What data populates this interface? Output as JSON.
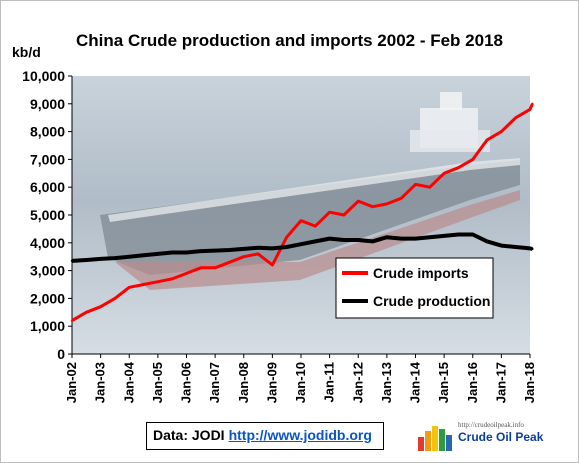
{
  "title": "China Crude production and imports 2002 - Feb 2018",
  "unit_label": "kb/d",
  "source": {
    "label": "Data: JODI",
    "link": "http://www.jodidb.org"
  },
  "logo": {
    "url": "http://crudeoilpeak.info",
    "name": "Crude Oil Peak"
  },
  "colors": {
    "imports": "#ff0000",
    "production": "#000000",
    "legend_border": "#000000"
  },
  "chart_data": {
    "type": "line",
    "title": "China Crude production and imports 2002 - Feb 2018",
    "ylabel": "kb/d",
    "ylim": [
      0,
      10000
    ],
    "yticks": [
      "0",
      "1,000",
      "2,000",
      "3,000",
      "4,000",
      "5,000",
      "6,000",
      "7,000",
      "8,000",
      "9,000",
      "10,000"
    ],
    "ytick_values": [
      0,
      1000,
      2000,
      3000,
      4000,
      5000,
      6000,
      7000,
      8000,
      9000,
      10000
    ],
    "xticks": [
      "Jan-02",
      "Jan-03",
      "Jan-04",
      "Jan-05",
      "Jan-06",
      "Jan-07",
      "Jan-08",
      "Jan-09",
      "Jan-10",
      "Jan-11",
      "Jan-12",
      "Jan-13",
      "Jan-14",
      "Jan-15",
      "Jan-16",
      "Jan-17",
      "Jan-18"
    ],
    "xlim": [
      "Jan-02",
      "Feb-18"
    ],
    "legend_position": "right",
    "grid": false,
    "series": [
      {
        "name": "Crude imports",
        "color": "#ff0000",
        "x": [
          "Jan-02",
          "Jul-02",
          "Jan-03",
          "Jul-03",
          "Jan-04",
          "Jul-04",
          "Jan-05",
          "Jul-05",
          "Jan-06",
          "Jul-06",
          "Jan-07",
          "Jul-07",
          "Jan-08",
          "Jul-08",
          "Jan-09",
          "Jul-09",
          "Jan-10",
          "Jul-10",
          "Jan-11",
          "Jul-11",
          "Jan-12",
          "Jul-12",
          "Jan-13",
          "Jul-13",
          "Jan-14",
          "Jul-14",
          "Jan-15",
          "Jul-15",
          "Jan-16",
          "Jul-16",
          "Jan-17",
          "Jul-17",
          "Jan-18",
          "Feb-18"
        ],
        "values": [
          1200,
          1500,
          1700,
          2000,
          2400,
          2500,
          2600,
          2700,
          2900,
          3100,
          3100,
          3300,
          3500,
          3600,
          3200,
          4200,
          4800,
          4600,
          5100,
          5000,
          5500,
          5300,
          5400,
          5600,
          6100,
          6000,
          6500,
          6700,
          7000,
          7700,
          8000,
          8500,
          8800,
          9000
        ]
      },
      {
        "name": "Crude production",
        "color": "#000000",
        "x": [
          "Jan-02",
          "Jul-02",
          "Jan-03",
          "Jul-03",
          "Jan-04",
          "Jul-04",
          "Jan-05",
          "Jul-05",
          "Jan-06",
          "Jul-06",
          "Jan-07",
          "Jul-07",
          "Jan-08",
          "Jul-08",
          "Jan-09",
          "Jul-09",
          "Jan-10",
          "Jul-10",
          "Jan-11",
          "Jul-11",
          "Jan-12",
          "Jul-12",
          "Jan-13",
          "Jul-13",
          "Jan-14",
          "Jul-14",
          "Jan-15",
          "Jul-15",
          "Jan-16",
          "Jul-16",
          "Jan-17",
          "Jul-17",
          "Jan-18",
          "Feb-18"
        ],
        "values": [
          3350,
          3380,
          3420,
          3450,
          3500,
          3550,
          3600,
          3650,
          3650,
          3700,
          3720,
          3740,
          3780,
          3820,
          3800,
          3850,
          3950,
          4050,
          4150,
          4100,
          4100,
          4050,
          4200,
          4150,
          4150,
          4200,
          4250,
          4300,
          4300,
          4050,
          3900,
          3850,
          3800,
          3780
        ]
      }
    ]
  }
}
